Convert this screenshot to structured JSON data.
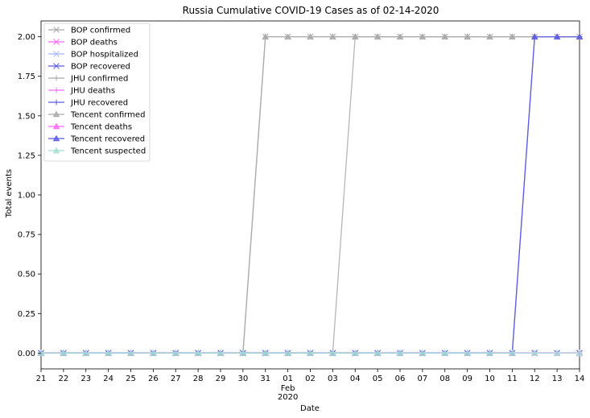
{
  "chart_data": {
    "type": "line",
    "title": "Russia Cumulative COVID-19 Cases as of 02-14-2020",
    "xlabel": "Date",
    "ylabel": "Total events",
    "x": [
      "2020-01-21",
      "2020-01-22",
      "2020-01-23",
      "2020-01-24",
      "2020-01-25",
      "2020-01-26",
      "2020-01-27",
      "2020-01-28",
      "2020-01-29",
      "2020-01-30",
      "2020-01-31",
      "2020-02-01",
      "2020-02-02",
      "2020-02-03",
      "2020-02-04",
      "2020-02-05",
      "2020-02-06",
      "2020-02-07",
      "2020-02-08",
      "2020-02-09",
      "2020-02-10",
      "2020-02-11",
      "2020-02-12",
      "2020-02-13",
      "2020-02-14"
    ],
    "x_tick_labels": [
      "21",
      "22",
      "23",
      "24",
      "25",
      "26",
      "27",
      "28",
      "29",
      "30",
      "31",
      "01",
      "02",
      "03",
      "04",
      "05",
      "06",
      "07",
      "08",
      "09",
      "10",
      "11",
      "12",
      "13",
      "14"
    ],
    "x_month_label": {
      "label": "Feb",
      "year": "2020"
    },
    "ylim": [
      -0.1,
      2.1
    ],
    "y_ticks": [
      0.0,
      0.25,
      0.5,
      0.75,
      1.0,
      1.25,
      1.5,
      1.75,
      2.0
    ],
    "y_tick_labels": [
      "0.00",
      "0.25",
      "0.50",
      "0.75",
      "1.00",
      "1.25",
      "1.50",
      "1.75",
      "2.00"
    ],
    "legend_position": "top-left",
    "grid": false,
    "series": [
      {
        "name": "BOP confirmed",
        "color": "#a9a9a9",
        "marker": "x",
        "values": [
          0,
          0,
          0,
          0,
          0,
          0,
          0,
          0,
          0,
          0,
          2,
          2,
          2,
          2,
          2,
          2,
          2,
          2,
          2,
          2,
          2,
          2,
          2,
          2,
          2
        ]
      },
      {
        "name": "BOP deaths",
        "color": "#ff66ff",
        "marker": "x",
        "values": [
          0,
          0,
          0,
          0,
          0,
          0,
          0,
          0,
          0,
          0,
          0,
          0,
          0,
          0,
          0,
          0,
          0,
          0,
          0,
          0,
          0,
          0,
          0,
          0,
          0
        ]
      },
      {
        "name": "BOP hospitalized",
        "color": "#a8b8ff",
        "marker": "x",
        "values": [
          0,
          0,
          0,
          0,
          0,
          0,
          0,
          0,
          0,
          0,
          0,
          0,
          0,
          0,
          0,
          0,
          0,
          0,
          0,
          0,
          0,
          0,
          0,
          0,
          0
        ]
      },
      {
        "name": "BOP recovered",
        "color": "#5a5ae6",
        "marker": "x",
        "values": [
          0,
          0,
          0,
          0,
          0,
          0,
          0,
          0,
          0,
          0,
          0,
          0,
          0,
          0,
          0,
          0,
          0,
          0,
          0,
          0,
          0,
          0,
          0,
          0,
          0
        ]
      },
      {
        "name": "JHU confirmed",
        "color": "#a9a9a9",
        "marker": "+",
        "values": [
          0,
          0,
          0,
          0,
          0,
          0,
          0,
          0,
          0,
          0,
          0,
          0,
          0,
          0,
          2,
          2,
          2,
          2,
          2,
          2,
          2,
          2,
          2,
          2,
          2
        ]
      },
      {
        "name": "JHU deaths",
        "color": "#ff66ff",
        "marker": "+",
        "values": [
          0,
          0,
          0,
          0,
          0,
          0,
          0,
          0,
          0,
          0,
          0,
          0,
          0,
          0,
          0,
          0,
          0,
          0,
          0,
          0,
          0,
          0,
          0,
          0,
          0
        ]
      },
      {
        "name": "JHU recovered",
        "color": "#5a5ae6",
        "marker": "+",
        "values": [
          0,
          0,
          0,
          0,
          0,
          0,
          0,
          0,
          0,
          0,
          0,
          0,
          0,
          0,
          0,
          0,
          0,
          0,
          0,
          0,
          0,
          0,
          2,
          2,
          2
        ]
      },
      {
        "name": "Tencent confirmed",
        "color": "#a9a9a9",
        "marker": "^",
        "values": [
          0,
          0,
          0,
          0,
          0,
          0,
          0,
          0,
          0,
          0,
          2,
          2,
          2,
          2,
          2,
          2,
          2,
          2,
          2,
          2,
          2,
          2,
          2,
          2,
          2
        ]
      },
      {
        "name": "Tencent deaths",
        "color": "#ff66ff",
        "marker": "^",
        "values": [
          0,
          0,
          0,
          0,
          0,
          0,
          0,
          0,
          0,
          0,
          0,
          0,
          0,
          0,
          0,
          0,
          0,
          0,
          0,
          0,
          0,
          0,
          0,
          0,
          0
        ]
      },
      {
        "name": "Tencent recovered",
        "color": "#5a5ae6",
        "marker": "^",
        "values": [
          0,
          0,
          0,
          0,
          0,
          0,
          0,
          0,
          0,
          0,
          0,
          0,
          0,
          0,
          0,
          0,
          0,
          0,
          0,
          0,
          0,
          0,
          2,
          2,
          2
        ]
      },
      {
        "name": "Tencent suspected",
        "color": "#a0e0d0",
        "marker": "^",
        "values": [
          0,
          0,
          0,
          0,
          0,
          0,
          0,
          0,
          0,
          0,
          0,
          0,
          0,
          0,
          0,
          0,
          0,
          0,
          0,
          0,
          0,
          0,
          0,
          0,
          0
        ]
      }
    ]
  }
}
